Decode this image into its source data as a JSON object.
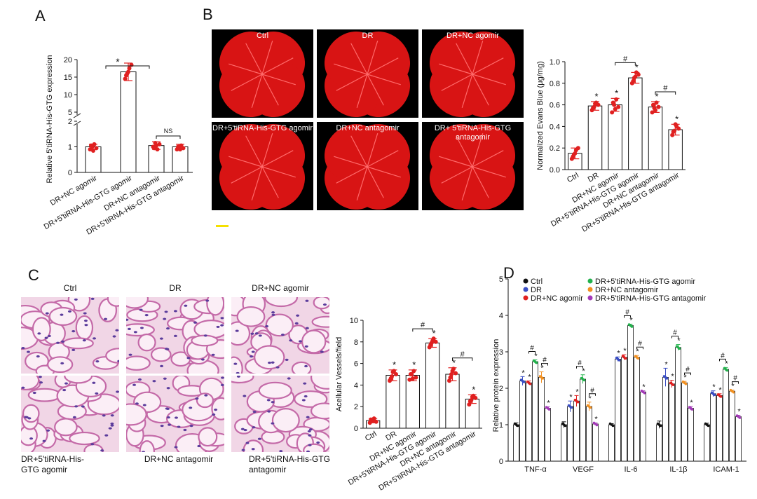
{
  "panels": {
    "a": "A",
    "b": "B",
    "c": "C",
    "d": "D"
  },
  "b_images": {
    "labels": [
      "Ctrl",
      "DR",
      "DR+NC agomir",
      "DR+5'tiRNA-His-GTG agomir",
      "DR+NC antagomir",
      "DR+ 5'tiRNA-His-GTG antagomir"
    ]
  },
  "c_images": {
    "top_labels": [
      "Ctrl",
      "DR",
      "DR+NC agomir"
    ],
    "bottom_labels": [
      "DR+5'tiRNA-His-GTG agomir",
      "DR+NC antagomir",
      "DR+5'tiRNA-His-GTG antagomir"
    ]
  },
  "colors": {
    "point_red": "#e02020",
    "bar_stroke": "#111111",
    "retina_red": "#d81414",
    "scale_bar": "#f5e000"
  },
  "chart_data": [
    {
      "id": "A",
      "type": "bar",
      "ylabel": "Relative 5'tiRNA-His-GTG expression",
      "categories": [
        "DR+NC agomir",
        "DR+5'tiRNA-His-GTG agomir",
        "DR+NC antagomir",
        "DR+5'tiRNA-His-GTG antagomir"
      ],
      "values": [
        1.0,
        16.5,
        1.05,
        1.0
      ],
      "errors": [
        0.1,
        2.5,
        0.15,
        0.1
      ],
      "points": [
        [
          0.9,
          1.0,
          1.1,
          0.95,
          1.05,
          0.85
        ],
        [
          14.5,
          16,
          17.5,
          18.5,
          15.5,
          16.5
        ],
        [
          1.0,
          1.15,
          0.9,
          1.1,
          0.95,
          1.05
        ],
        [
          0.9,
          1.0,
          1.05,
          0.95,
          1.0,
          0.9
        ]
      ],
      "y_ticks_lower": [
        "0",
        "1",
        "2"
      ],
      "y_ticks_upper": [
        "5",
        "10",
        "15",
        "20"
      ],
      "axis_break": true,
      "annotations": [
        {
          "between": [
            0,
            1
          ],
          "text": "*"
        },
        {
          "between": [
            2,
            3
          ],
          "text": "NS"
        }
      ]
    },
    {
      "id": "B",
      "type": "bar",
      "ylabel": "Normalized Evans Blue (μg/mg)",
      "categories": [
        "Ctrl",
        "DR",
        "DR+NC agomir",
        "DR+5'tiRNA-His-GTG agomir",
        "DR+NC antagomir",
        "DR+5'tiRNA-His-GTG antagomir"
      ],
      "values": [
        0.15,
        0.59,
        0.6,
        0.85,
        0.58,
        0.37
      ],
      "errors": [
        0.05,
        0.04,
        0.06,
        0.05,
        0.05,
        0.05
      ],
      "points": [
        [
          0.1,
          0.14,
          0.18,
          0.2,
          0.12,
          0.15
        ],
        [
          0.55,
          0.58,
          0.62,
          0.6,
          0.57,
          0.61
        ],
        [
          0.53,
          0.6,
          0.65,
          0.58,
          0.62,
          0.56
        ],
        [
          0.8,
          0.85,
          0.9,
          0.88,
          0.82,
          0.86
        ],
        [
          0.53,
          0.57,
          0.62,
          0.58,
          0.6,
          0.55
        ],
        [
          0.32,
          0.36,
          0.4,
          0.38,
          0.35,
          0.42
        ]
      ],
      "ylim": [
        0,
        1.0
      ],
      "y_ticks": [
        "0.0",
        "0.2",
        "0.4",
        "0.6",
        "0.8",
        "1.0"
      ],
      "stars": [
        false,
        true,
        true,
        true,
        true,
        true
      ],
      "hash_brackets": [
        [
          2,
          3
        ],
        [
          4,
          5
        ]
      ],
      "star_text": "*",
      "hash_text": "#"
    },
    {
      "id": "C",
      "type": "bar",
      "ylabel": "Acellular Vessels/field",
      "categories": [
        "Ctrl",
        "DR",
        "DR+NC agomir",
        "DR+5'tiRNA-His-GTG agomir",
        "DR+NC antagomir",
        "DR+5'tiRNA-His-GTG antagomir"
      ],
      "values": [
        0.7,
        4.9,
        4.9,
        7.9,
        5.0,
        2.7
      ],
      "errors": [
        0.2,
        0.5,
        0.5,
        0.4,
        0.6,
        0.4
      ],
      "points": [
        [
          0.5,
          0.7,
          0.9,
          0.6,
          0.8,
          0.7
        ],
        [
          4.4,
          4.8,
          5.3,
          5.0,
          4.6,
          5.2
        ],
        [
          4.5,
          5.0,
          5.3,
          4.7,
          5.0,
          4.6
        ],
        [
          7.5,
          7.9,
          8.3,
          8.0,
          7.7,
          8.1
        ],
        [
          4.4,
          5.0,
          5.5,
          5.1,
          4.7,
          5.3
        ],
        [
          2.2,
          2.6,
          3.0,
          2.8,
          2.5,
          2.9
        ]
      ],
      "ylim": [
        0,
        10
      ],
      "y_ticks": [
        "0",
        "2",
        "4",
        "6",
        "8",
        "10"
      ],
      "stars": [
        false,
        true,
        true,
        true,
        true,
        true
      ],
      "hash_brackets": [
        [
          2,
          3
        ],
        [
          4,
          5
        ]
      ],
      "star_text": "*",
      "hash_text": "#"
    },
    {
      "id": "D",
      "type": "bar",
      "ylabel": "Relative protein expression",
      "categories": [
        "TNF-α",
        "VEGF",
        "IL-6",
        "IL-1β",
        "ICAM-1"
      ],
      "ylim": [
        0,
        5
      ],
      "y_ticks": [
        "0",
        "1",
        "2",
        "3",
        "4",
        "5"
      ],
      "series": [
        {
          "name": "Ctrl",
          "color": "#111111",
          "values": [
            1.0,
            1.0,
            1.0,
            1.0,
            1.0
          ],
          "errors": [
            0.05,
            0.08,
            0.03,
            0.1,
            0.04
          ]
        },
        {
          "name": "DR",
          "color": "#3b4fc4",
          "values": [
            2.2,
            1.5,
            2.8,
            2.3,
            1.85
          ],
          "errors": [
            0.12,
            0.15,
            0.06,
            0.25,
            0.08
          ]
        },
        {
          "name": "DR+NC agomir",
          "color": "#e02020",
          "values": [
            2.15,
            1.65,
            2.85,
            2.12,
            1.8
          ],
          "errors": [
            0.05,
            0.15,
            0.07,
            0.1,
            0.05
          ]
        },
        {
          "name": "DR+5'tiRNA-His-GTG agomir",
          "color": "#22b24c",
          "values": [
            2.73,
            2.25,
            3.72,
            3.12,
            2.52
          ],
          "errors": [
            0.05,
            0.12,
            0.04,
            0.08,
            0.05
          ]
        },
        {
          "name": "DR+NC antagomir",
          "color": "#f29020",
          "values": [
            2.3,
            1.5,
            2.85,
            2.15,
            1.92
          ],
          "errors": [
            0.15,
            0.12,
            0.05,
            0.04,
            0.03
          ]
        },
        {
          "name": "DR+5'tiRNA-His-GTG antagomir",
          "color": "#a33ab8",
          "values": [
            1.45,
            1.02,
            1.9,
            1.45,
            1.22
          ],
          "errors": [
            0.04,
            0.03,
            0.03,
            0.05,
            0.04
          ]
        }
      ],
      "star_text": "*",
      "hash_text": "#"
    }
  ]
}
